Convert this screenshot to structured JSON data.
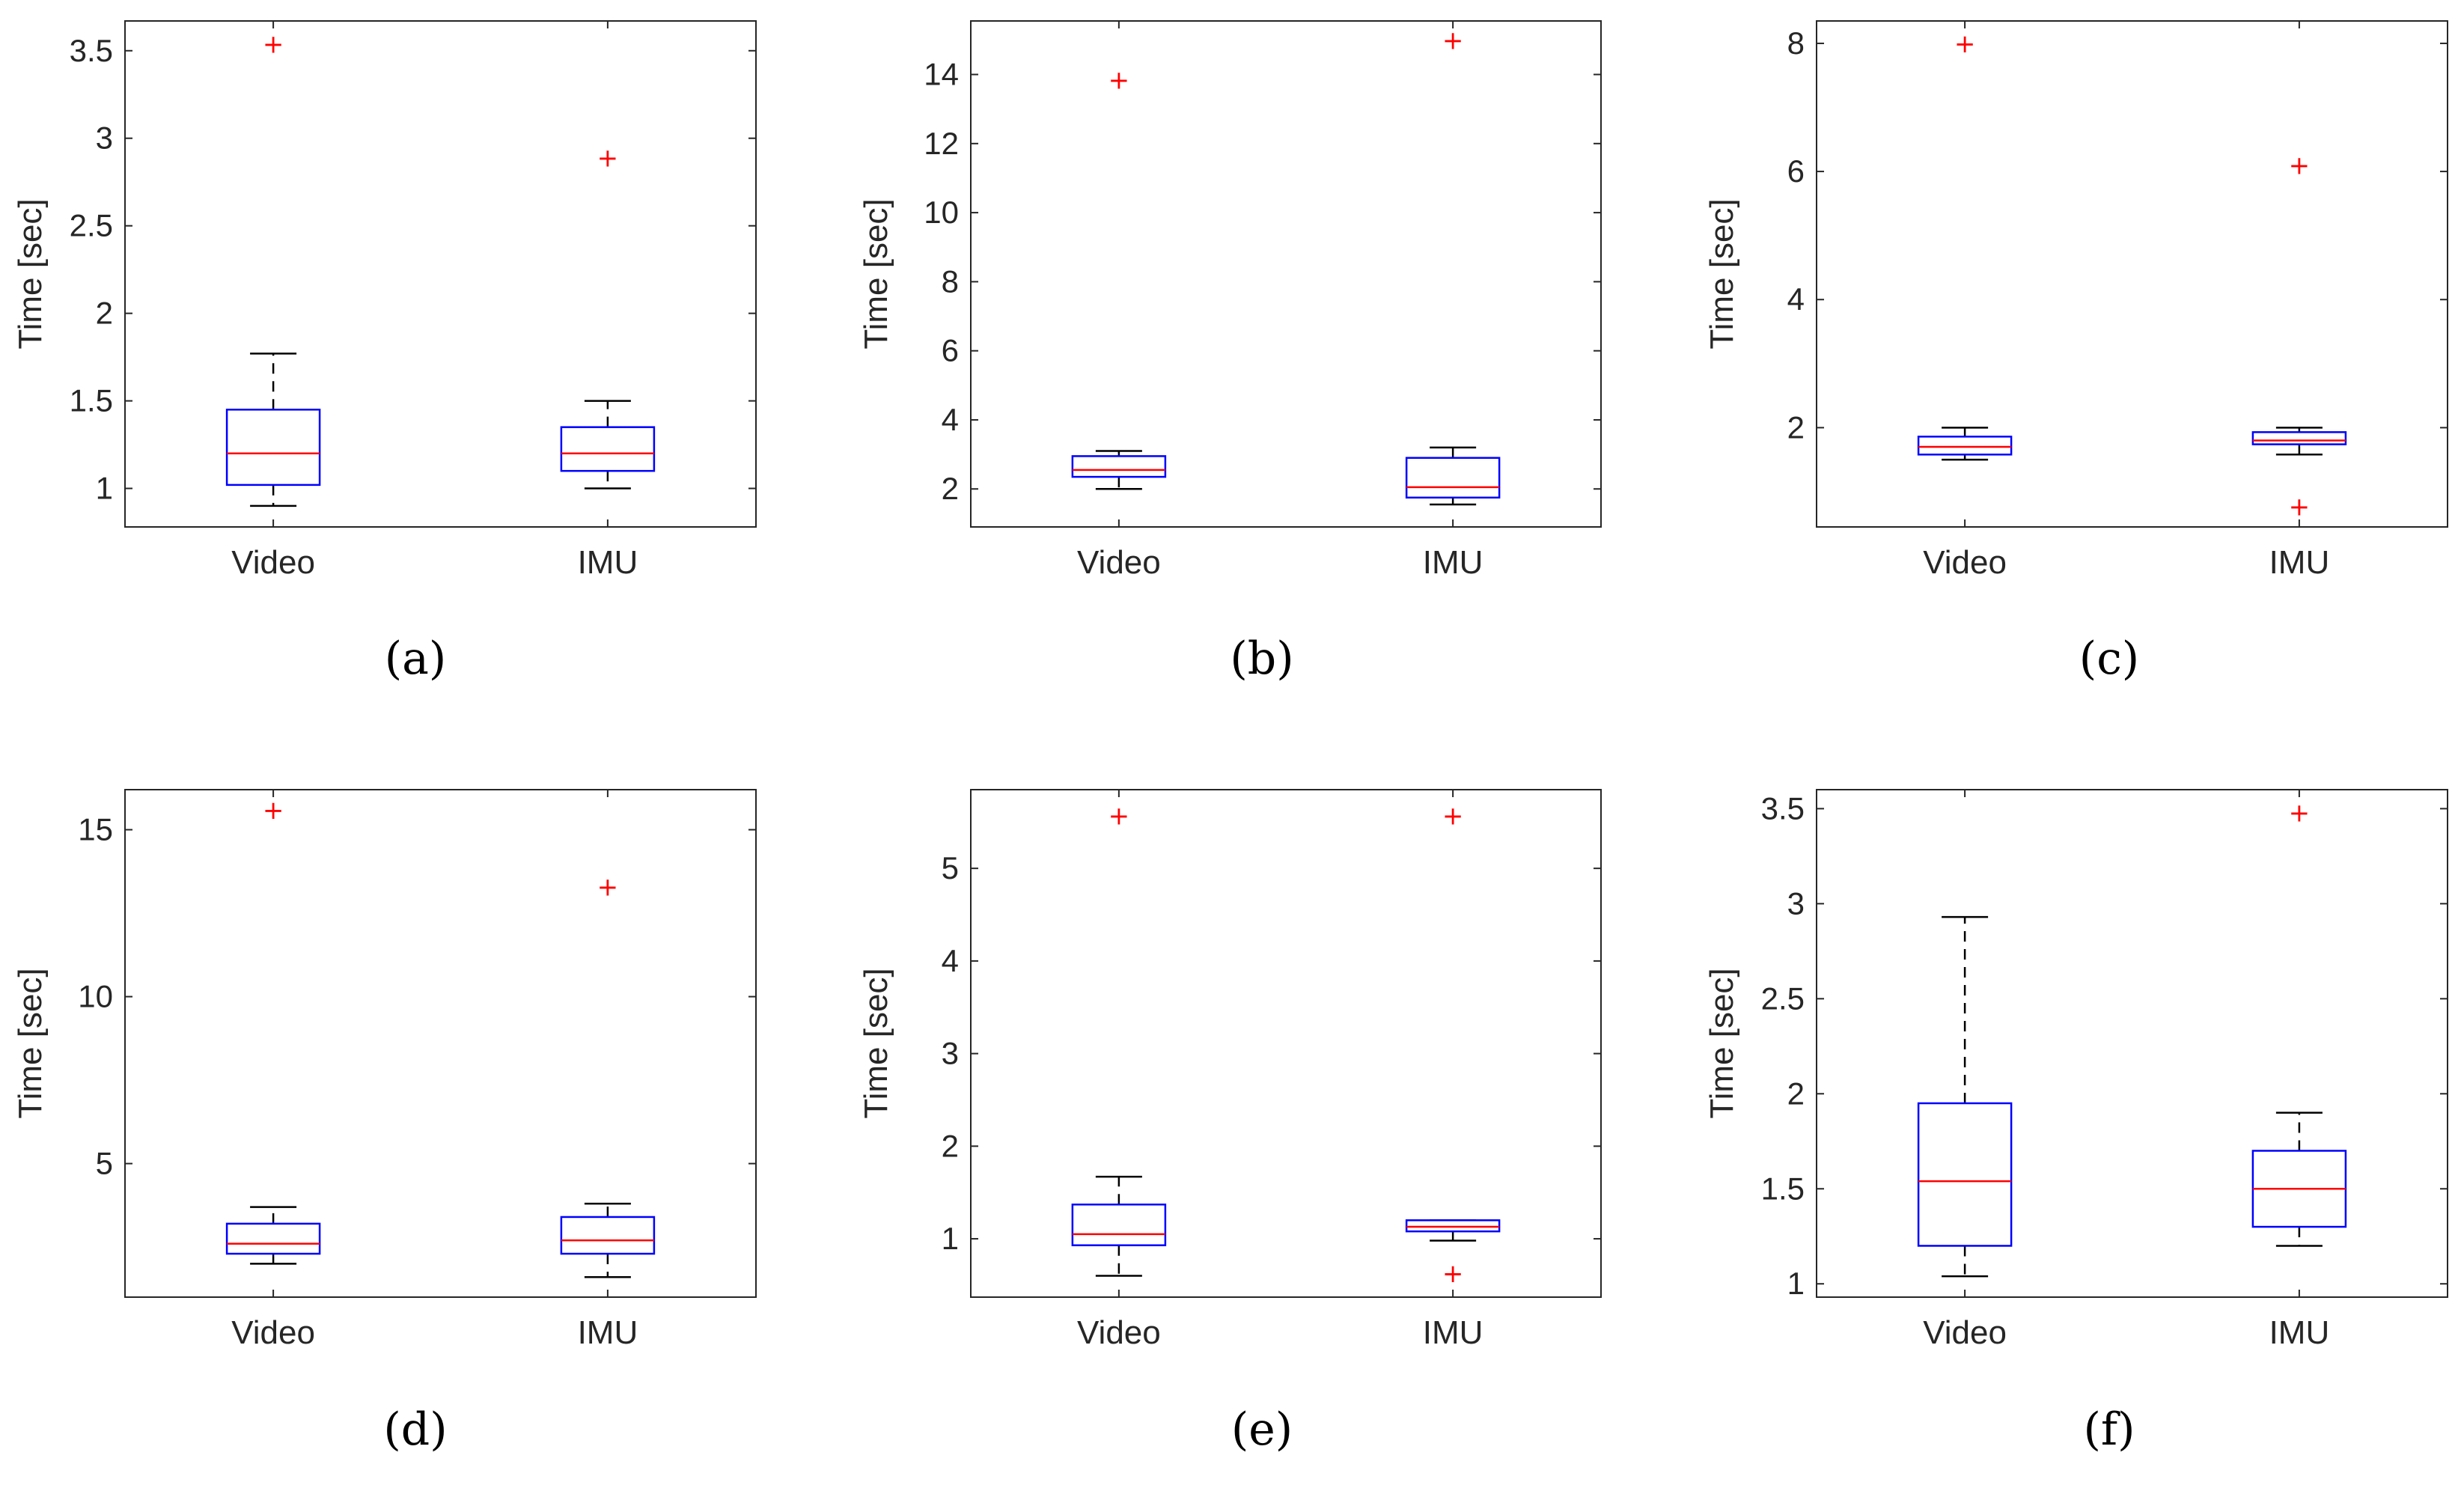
{
  "chart_data": [
    {
      "type": "box",
      "caption": "(a)",
      "ylabel": "Time [sec]",
      "ylim": [
        0.78,
        3.67
      ],
      "yticks": [
        1,
        1.5,
        2,
        2.5,
        3,
        3.5
      ],
      "ytick_labels": [
        "1",
        "1.5",
        "2",
        "2.5",
        "3",
        "3.5"
      ],
      "categories": [
        "Video",
        "IMU"
      ],
      "boxes": [
        {
          "whisker_low": 0.9,
          "q1": 1.02,
          "median": 1.2,
          "q3": 1.45,
          "whisker_high": 1.77,
          "outliers": [
            3.54
          ]
        },
        {
          "whisker_low": 1.0,
          "q1": 1.1,
          "median": 1.2,
          "q3": 1.35,
          "whisker_high": 1.5,
          "outliers": [
            2.89
          ]
        }
      ]
    },
    {
      "type": "box",
      "caption": "(b)",
      "ylabel": "Time [sec]",
      "ylim": [
        0.9,
        15.55
      ],
      "yticks": [
        2,
        4,
        6,
        8,
        10,
        12,
        14
      ],
      "ytick_labels": [
        "2",
        "4",
        "6",
        "8",
        "10",
        "12",
        "14"
      ],
      "categories": [
        "Video",
        "IMU"
      ],
      "boxes": [
        {
          "whisker_low": 2.0,
          "q1": 2.35,
          "median": 2.55,
          "q3": 2.95,
          "whisker_high": 3.1,
          "outliers": [
            13.85
          ]
        },
        {
          "whisker_low": 1.55,
          "q1": 1.75,
          "median": 2.05,
          "q3": 2.9,
          "whisker_high": 3.2,
          "outliers": [
            15.0
          ]
        }
      ]
    },
    {
      "type": "box",
      "caption": "(c)",
      "ylabel": "Time [sec]",
      "ylim": [
        0.45,
        8.35
      ],
      "yticks": [
        2,
        4,
        6,
        8
      ],
      "ytick_labels": [
        "2",
        "4",
        "6",
        "8"
      ],
      "categories": [
        "Video",
        "IMU"
      ],
      "boxes": [
        {
          "whisker_low": 1.5,
          "q1": 1.58,
          "median": 1.7,
          "q3": 1.86,
          "whisker_high": 2.0,
          "outliers": [
            8.0
          ]
        },
        {
          "whisker_low": 1.58,
          "q1": 1.74,
          "median": 1.8,
          "q3": 1.93,
          "whisker_high": 2.0,
          "outliers": [
            6.1,
            0.77
          ]
        }
      ]
    },
    {
      "type": "box",
      "caption": "(d)",
      "ylabel": "Time [sec]",
      "ylim": [
        1.0,
        16.2
      ],
      "yticks": [
        5,
        10,
        15
      ],
      "ytick_labels": [
        "5",
        "10",
        "15"
      ],
      "categories": [
        "Video",
        "IMU"
      ],
      "boxes": [
        {
          "whisker_low": 2.0,
          "q1": 2.3,
          "median": 2.6,
          "q3": 3.2,
          "whisker_high": 3.7,
          "outliers": [
            15.6
          ]
        },
        {
          "whisker_low": 1.6,
          "q1": 2.3,
          "median": 2.7,
          "q3": 3.4,
          "whisker_high": 3.8,
          "outliers": [
            13.3
          ]
        }
      ]
    },
    {
      "type": "box",
      "caption": "(e)",
      "ylabel": "Time [sec]",
      "ylim": [
        0.37,
        5.85
      ],
      "yticks": [
        1,
        2,
        3,
        4,
        5
      ],
      "ytick_labels": [
        "1",
        "2",
        "3",
        "4",
        "5"
      ],
      "categories": [
        "Video",
        "IMU"
      ],
      "boxes": [
        {
          "whisker_low": 0.6,
          "q1": 0.93,
          "median": 1.05,
          "q3": 1.37,
          "whisker_high": 1.67,
          "outliers": [
            5.57
          ]
        },
        {
          "whisker_low": 0.98,
          "q1": 1.08,
          "median": 1.13,
          "q3": 1.2,
          "whisker_high": 1.2,
          "outliers": [
            5.57,
            0.63
          ]
        }
      ]
    },
    {
      "type": "box",
      "caption": "(f)",
      "ylabel": "Time [sec]",
      "ylim": [
        0.93,
        3.6
      ],
      "yticks": [
        1,
        1.5,
        2,
        2.5,
        3,
        3.5
      ],
      "ytick_labels": [
        "1",
        "1.5",
        "2",
        "2.5",
        "3",
        "3.5"
      ],
      "categories": [
        "Video",
        "IMU"
      ],
      "boxes": [
        {
          "whisker_low": 1.04,
          "q1": 1.2,
          "median": 1.54,
          "q3": 1.95,
          "whisker_high": 2.93,
          "outliers": []
        },
        {
          "whisker_low": 1.2,
          "q1": 1.3,
          "median": 1.5,
          "q3": 1.7,
          "whisker_high": 1.9,
          "outliers": [
            3.48
          ]
        }
      ]
    }
  ]
}
